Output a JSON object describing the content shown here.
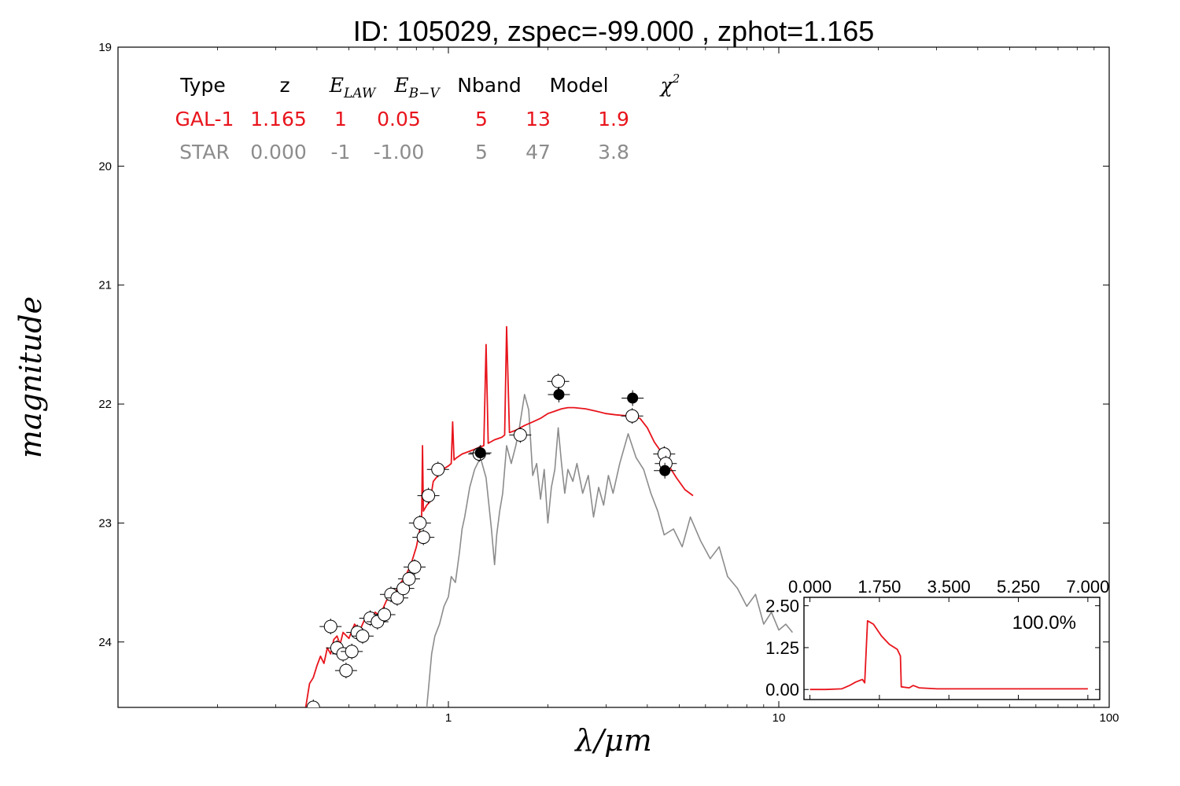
{
  "colors": {
    "galaxy": "#e8141c",
    "star": "#8c8c8c",
    "axis": "#000000",
    "observed_fill": "#ffffff",
    "observed_filled": "#000000"
  },
  "chart_data": [
    {
      "type": "line",
      "title": "ID:  105029, zspec=-99.000 , zphot=1.165",
      "xlabel": "λ/μm",
      "ylabel": "magnitude",
      "xscale": "log",
      "yaxis_inverted": true,
      "xlim": [
        0.1,
        100
      ],
      "ylim": [
        19,
        24.55
      ],
      "xticks": [
        {
          "v": 1,
          "label": "1"
        },
        {
          "v": 10,
          "label": "10"
        },
        {
          "v": 100,
          "label": "100"
        }
      ],
      "yticks": [
        {
          "v": 19,
          "label": "19"
        },
        {
          "v": 20,
          "label": "20"
        },
        {
          "v": 21,
          "label": "21"
        },
        {
          "v": 22,
          "label": "22"
        },
        {
          "v": 23,
          "label": "23"
        },
        {
          "v": 24,
          "label": "24"
        }
      ],
      "fit_table": {
        "headers": [
          "Type",
          "z",
          "E_LAW",
          "E_B-V",
          "Nband",
          "Model",
          "χ²"
        ],
        "rows": [
          {
            "type": "GAL-1",
            "z": "1.165",
            "law": "1",
            "ebv": "0.05",
            "nband": "5",
            "model": "13",
            "chi2": "1.9",
            "color": "#e8141c"
          },
          {
            "type": "STAR",
            "z": "0.000",
            "law": "-1",
            "ebv": "-1.00",
            "nband": "5",
            "model": "47",
            "chi2": "3.8",
            "color": "#8c8c8c"
          }
        ]
      },
      "series": [
        {
          "name": "GAL-1",
          "color": "#e8141c",
          "points": [
            [
              0.37,
              24.55
            ],
            [
              0.38,
              24.35
            ],
            [
              0.39,
              24.3
            ],
            [
              0.4,
              24.2
            ],
            [
              0.41,
              24.12
            ],
            [
              0.42,
              24.18
            ],
            [
              0.43,
              24.05
            ],
            [
              0.44,
              24.1
            ],
            [
              0.45,
              23.98
            ],
            [
              0.46,
              23.95
            ],
            [
              0.47,
              24.02
            ],
            [
              0.48,
              23.92
            ],
            [
              0.5,
              23.97
            ],
            [
              0.52,
              23.85
            ],
            [
              0.54,
              23.9
            ],
            [
              0.56,
              23.8
            ],
            [
              0.58,
              23.85
            ],
            [
              0.6,
              23.75
            ],
            [
              0.62,
              23.78
            ],
            [
              0.65,
              23.65
            ],
            [
              0.68,
              23.62
            ],
            [
              0.71,
              23.52
            ],
            [
              0.74,
              23.45
            ],
            [
              0.77,
              23.35
            ],
            [
              0.8,
              23.2
            ],
            [
              0.82,
              23.05
            ],
            [
              0.83,
              22.95
            ],
            [
              0.835,
              22.35
            ],
            [
              0.84,
              22.9
            ],
            [
              0.86,
              22.85
            ],
            [
              0.88,
              22.82
            ],
            [
              0.9,
              22.65
            ],
            [
              0.93,
              22.6
            ],
            [
              0.96,
              22.55
            ],
            [
              1.0,
              22.52
            ],
            [
              1.02,
              22.5
            ],
            [
              1.03,
              22.15
            ],
            [
              1.04,
              22.47
            ],
            [
              1.06,
              22.45
            ],
            [
              1.1,
              22.42
            ],
            [
              1.15,
              22.4
            ],
            [
              1.2,
              22.38
            ],
            [
              1.25,
              22.36
            ],
            [
              1.28,
              22.35
            ],
            [
              1.3,
              21.5
            ],
            [
              1.32,
              22.33
            ],
            [
              1.38,
              22.3
            ],
            [
              1.45,
              22.28
            ],
            [
              1.48,
              22.26
            ],
            [
              1.5,
              21.35
            ],
            [
              1.53,
              22.24
            ],
            [
              1.6,
              22.22
            ],
            [
              1.7,
              22.18
            ],
            [
              1.8,
              22.15
            ],
            [
              1.9,
              22.12
            ],
            [
              2.0,
              22.08
            ],
            [
              2.1,
              22.06
            ],
            [
              2.2,
              22.04
            ],
            [
              2.3,
              22.03
            ],
            [
              2.4,
              22.03
            ],
            [
              2.6,
              22.04
            ],
            [
              2.8,
              22.06
            ],
            [
              3.0,
              22.08
            ],
            [
              3.2,
              22.09
            ],
            [
              3.5,
              22.1
            ],
            [
              3.8,
              22.12
            ],
            [
              4.0,
              22.2
            ],
            [
              4.2,
              22.32
            ],
            [
              4.4,
              22.4
            ],
            [
              4.6,
              22.5
            ],
            [
              4.9,
              22.62
            ],
            [
              5.2,
              22.72
            ],
            [
              5.5,
              22.77
            ]
          ]
        },
        {
          "name": "STAR",
          "color": "#8c8c8c",
          "points": [
            [
              0.86,
              24.55
            ],
            [
              0.87,
              24.4
            ],
            [
              0.89,
              24.1
            ],
            [
              0.91,
              23.95
            ],
            [
              0.94,
              23.85
            ],
            [
              0.97,
              23.7
            ],
            [
              1.0,
              23.62
            ],
            [
              1.02,
              23.45
            ],
            [
              1.05,
              23.5
            ],
            [
              1.08,
              23.25
            ],
            [
              1.1,
              23.05
            ],
            [
              1.12,
              22.95
            ],
            [
              1.16,
              22.7
            ],
            [
              1.2,
              22.55
            ],
            [
              1.25,
              22.45
            ],
            [
              1.3,
              22.62
            ],
            [
              1.35,
              23.05
            ],
            [
              1.38,
              23.35
            ],
            [
              1.4,
              23.1
            ],
            [
              1.43,
              22.9
            ],
            [
              1.46,
              22.75
            ],
            [
              1.5,
              22.35
            ],
            [
              1.55,
              22.5
            ],
            [
              1.6,
              22.35
            ],
            [
              1.64,
              22.2
            ],
            [
              1.7,
              21.92
            ],
            [
              1.75,
              22.05
            ],
            [
              1.8,
              22.6
            ],
            [
              1.85,
              22.5
            ],
            [
              1.9,
              22.8
            ],
            [
              1.95,
              22.55
            ],
            [
              2.0,
              23.0
            ],
            [
              2.05,
              22.7
            ],
            [
              2.1,
              22.55
            ],
            [
              2.15,
              22.2
            ],
            [
              2.2,
              22.5
            ],
            [
              2.25,
              22.75
            ],
            [
              2.3,
              22.55
            ],
            [
              2.38,
              22.65
            ],
            [
              2.45,
              22.5
            ],
            [
              2.55,
              22.75
            ],
            [
              2.65,
              22.6
            ],
            [
              2.75,
              22.95
            ],
            [
              2.85,
              22.7
            ],
            [
              2.95,
              22.85
            ],
            [
              3.05,
              22.6
            ],
            [
              3.15,
              22.75
            ],
            [
              3.3,
              22.5
            ],
            [
              3.5,
              22.25
            ],
            [
              3.7,
              22.45
            ],
            [
              3.9,
              22.55
            ],
            [
              4.1,
              22.75
            ],
            [
              4.3,
              22.9
            ],
            [
              4.5,
              23.1
            ],
            [
              4.8,
              23.05
            ],
            [
              5.1,
              23.2
            ],
            [
              5.4,
              22.95
            ],
            [
              5.8,
              23.15
            ],
            [
              6.2,
              23.3
            ],
            [
              6.6,
              23.2
            ],
            [
              7.0,
              23.45
            ],
            [
              7.5,
              23.55
            ],
            [
              8.0,
              23.7
            ],
            [
              8.5,
              23.6
            ],
            [
              9.0,
              23.85
            ],
            [
              9.5,
              23.75
            ],
            [
              10.0,
              23.9
            ],
            [
              10.5,
              23.85
            ],
            [
              11.0,
              23.92
            ]
          ]
        }
      ],
      "observed": [
        {
          "x": 0.39,
          "y": 24.55,
          "fill": false
        },
        {
          "x": 0.44,
          "y": 23.87,
          "fill": false
        },
        {
          "x": 0.46,
          "y": 24.05,
          "fill": false
        },
        {
          "x": 0.48,
          "y": 24.1,
          "fill": false
        },
        {
          "x": 0.49,
          "y": 24.24,
          "fill": false
        },
        {
          "x": 0.51,
          "y": 24.08,
          "fill": false
        },
        {
          "x": 0.53,
          "y": 23.92,
          "fill": false
        },
        {
          "x": 0.55,
          "y": 23.95,
          "fill": false
        },
        {
          "x": 0.58,
          "y": 23.8,
          "fill": false
        },
        {
          "x": 0.61,
          "y": 23.83,
          "fill": false
        },
        {
          "x": 0.64,
          "y": 23.77,
          "fill": false
        },
        {
          "x": 0.67,
          "y": 23.6,
          "fill": false
        },
        {
          "x": 0.7,
          "y": 23.63,
          "fill": false
        },
        {
          "x": 0.73,
          "y": 23.55,
          "fill": false
        },
        {
          "x": 0.76,
          "y": 23.47,
          "fill": false
        },
        {
          "x": 0.79,
          "y": 23.37,
          "fill": false
        },
        {
          "x": 0.82,
          "y": 23.0,
          "fill": false
        },
        {
          "x": 0.84,
          "y": 23.12,
          "fill": false
        },
        {
          "x": 0.87,
          "y": 22.77,
          "fill": false
        },
        {
          "x": 0.93,
          "y": 22.55,
          "fill": false
        },
        {
          "x": 1.24,
          "y": 22.42,
          "fill": false
        },
        {
          "x": 1.25,
          "y": 22.41,
          "fill": true
        },
        {
          "x": 1.65,
          "y": 22.26,
          "fill": false
        },
        {
          "x": 2.15,
          "y": 21.81,
          "fill": false
        },
        {
          "x": 2.16,
          "y": 21.92,
          "fill": true
        },
        {
          "x": 3.6,
          "y": 22.1,
          "fill": false
        },
        {
          "x": 3.61,
          "y": 21.95,
          "fill": true
        },
        {
          "x": 4.5,
          "y": 22.42,
          "fill": false
        },
        {
          "x": 4.55,
          "y": 22.5,
          "fill": false
        },
        {
          "x": 4.52,
          "y": 22.56,
          "fill": true
        }
      ]
    },
    {
      "type": "line",
      "series": [
        {
          "name": "",
          "color": "#e8141c",
          "points": [
            [
              0,
              0
            ],
            [
              0.4,
              0
            ],
            [
              0.8,
              0.02
            ],
            [
              1.0,
              0.12
            ],
            [
              1.15,
              0.22
            ],
            [
              1.32,
              0.3
            ],
            [
              1.38,
              0.2
            ],
            [
              1.45,
              2.05
            ],
            [
              1.6,
              1.95
            ],
            [
              1.8,
              1.6
            ],
            [
              2.0,
              1.35
            ],
            [
              2.2,
              1.2
            ],
            [
              2.28,
              1.0
            ],
            [
              2.3,
              0.08
            ],
            [
              2.5,
              0.05
            ],
            [
              2.6,
              0.12
            ],
            [
              2.75,
              0.05
            ],
            [
              3.2,
              0.02
            ],
            [
              7.0,
              0.02
            ]
          ]
        }
      ],
      "xlim": [
        -0.15,
        7.3
      ],
      "ylim": [
        -0.3,
        2.75
      ],
      "xticks": [
        {
          "v": 0,
          "label": "0.000"
        },
        {
          "v": 1.75,
          "label": "1.750"
        },
        {
          "v": 3.5,
          "label": "3.500"
        },
        {
          "v": 5.25,
          "label": "5.250"
        },
        {
          "v": 7,
          "label": "7.000"
        }
      ],
      "yticks": [
        {
          "v": 0,
          "label": "0.00"
        },
        {
          "v": 1.25,
          "label": "1.25"
        },
        {
          "v": 2.5,
          "label": "2.50"
        }
      ],
      "annotation": "100.0%"
    }
  ]
}
